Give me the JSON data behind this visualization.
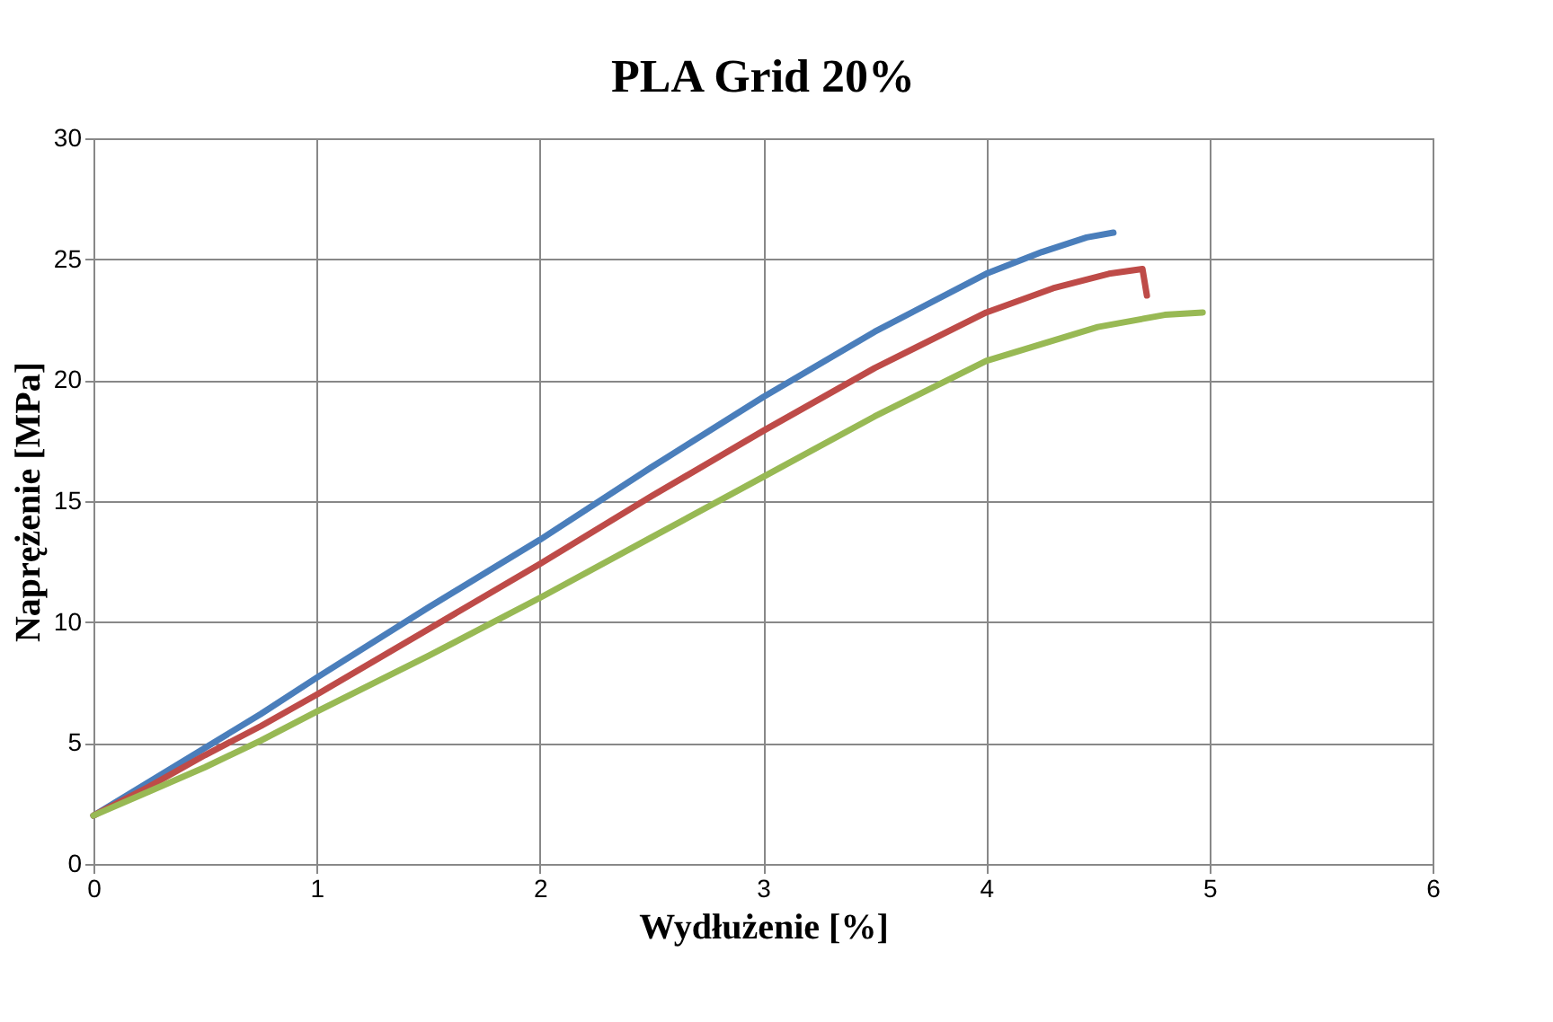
{
  "chart_data": {
    "type": "line",
    "title": "PLA Grid 20%",
    "xlabel": "Wydłużenie [%]",
    "ylabel": "Naprężenie [MPa]",
    "xlim": [
      0,
      6
    ],
    "xticks": [
      0,
      1,
      2,
      3,
      4,
      5,
      6
    ],
    "ylim": [
      0,
      30
    ],
    "yticks": [
      0,
      5,
      10,
      15,
      20,
      25,
      30
    ],
    "grid": true,
    "legend": false,
    "marker": "none",
    "line_style": "solid",
    "series": [
      {
        "color": "#4a7ebb",
        "x": [
          0,
          0.25,
          0.5,
          0.75,
          1,
          1.5,
          2,
          2.5,
          3,
          3.5,
          4,
          4.25,
          4.45,
          4.57
        ],
        "values": [
          2,
          3.4,
          4.8,
          6.2,
          7.7,
          10.6,
          13.4,
          16.4,
          19.3,
          22,
          24.4,
          25.3,
          25.9,
          26.1
        ]
      },
      {
        "color": "#be4b48",
        "x": [
          0,
          0.25,
          0.5,
          0.75,
          1,
          1.5,
          2,
          2.5,
          3,
          3.5,
          4,
          4.3,
          4.55,
          4.7,
          4.72
        ],
        "values": [
          2,
          3.2,
          4.5,
          5.7,
          7,
          9.7,
          12.4,
          15.2,
          17.9,
          20.5,
          22.8,
          23.8,
          24.4,
          24.6,
          23.5
        ]
      },
      {
        "color": "#98b954",
        "x": [
          0,
          0.25,
          0.5,
          0.75,
          1,
          1.5,
          2,
          2.5,
          3,
          3.5,
          4,
          4.5,
          4.8,
          4.97
        ],
        "values": [
          2,
          3,
          4,
          5.1,
          6.3,
          8.6,
          11,
          13.5,
          16,
          18.5,
          20.8,
          22.2,
          22.7,
          22.8
        ]
      }
    ]
  }
}
